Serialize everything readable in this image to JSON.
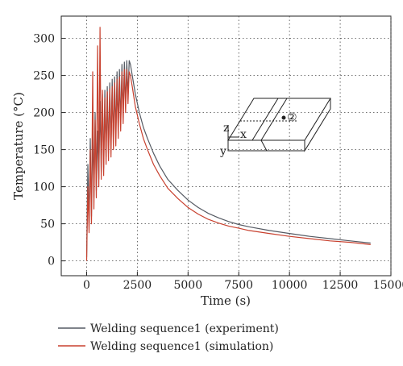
{
  "chart_data": {
    "type": "line",
    "xlabel": "Time (s)",
    "ylabel": "Temperature (°C)",
    "xlim": [
      -1250,
      15000
    ],
    "ylim": [
      -20,
      330
    ],
    "xticks": [
      0,
      2500,
      5000,
      7500,
      10000,
      12500,
      15000
    ],
    "xtick_labels": [
      "0",
      "2500",
      "5000",
      "7500",
      "10000",
      "12500",
      "15000"
    ],
    "yticks": [
      0,
      50,
      100,
      150,
      200,
      250,
      300
    ],
    "ytick_labels": [
      "0",
      "50",
      "100",
      "150",
      "200",
      "250",
      "300"
    ],
    "grid": true,
    "legend_position": "bottom",
    "series": [
      {
        "name": "Welding sequence1 (experiment)",
        "color": "#555a63",
        "x": [
          0,
          60,
          120,
          180,
          240,
          300,
          360,
          420,
          480,
          540,
          600,
          660,
          720,
          780,
          840,
          900,
          960,
          1020,
          1080,
          1140,
          1200,
          1260,
          1320,
          1380,
          1440,
          1500,
          1560,
          1620,
          1680,
          1740,
          1800,
          1860,
          1920,
          1980,
          2040,
          2100,
          2160,
          2250,
          2400,
          2600,
          2800,
          3000,
          3300,
          3600,
          4000,
          4500,
          5000,
          5500,
          6000,
          6500,
          7000,
          7500,
          8000,
          9000,
          10000,
          11000,
          12000,
          13000,
          14000
        ],
        "y": [
          5,
          130,
          50,
          165,
          60,
          175,
          85,
          200,
          95,
          175,
          110,
          215,
          120,
          225,
          125,
          230,
          140,
          235,
          145,
          240,
          150,
          245,
          160,
          248,
          170,
          255,
          180,
          258,
          185,
          265,
          195,
          268,
          210,
          270,
          220,
          270,
          265,
          250,
          225,
          200,
          180,
          165,
          145,
          128,
          110,
          95,
          82,
          72,
          64,
          58,
          53,
          49,
          46,
          41,
          37,
          33,
          30,
          27,
          24
        ]
      },
      {
        "name": "Welding sequence1 (simulation)",
        "color": "#c8412f",
        "x": [
          0,
          60,
          120,
          180,
          240,
          300,
          360,
          420,
          480,
          540,
          600,
          660,
          720,
          780,
          840,
          900,
          960,
          1020,
          1080,
          1140,
          1200,
          1260,
          1320,
          1380,
          1440,
          1500,
          1560,
          1620,
          1680,
          1740,
          1800,
          1860,
          1920,
          1980,
          2040,
          2100,
          2160,
          2250,
          2400,
          2600,
          2800,
          3000,
          3300,
          3600,
          4000,
          4500,
          5000,
          5500,
          6000,
          6500,
          7000,
          7500,
          8000,
          9000,
          10000,
          11000,
          12000,
          13000,
          14000
        ],
        "y": [
          0,
          100,
          38,
          150,
          50,
          255,
          70,
          190,
          85,
          290,
          100,
          315,
          110,
          230,
          115,
          220,
          130,
          228,
          135,
          232,
          140,
          235,
          150,
          240,
          155,
          245,
          165,
          248,
          175,
          255,
          185,
          258,
          200,
          258,
          212,
          255,
          250,
          235,
          208,
          185,
          165,
          150,
          130,
          115,
          98,
          84,
          72,
          63,
          56,
          51,
          47,
          44,
          41,
          37,
          33,
          30,
          27,
          25,
          22
        ]
      }
    ],
    "inset": {
      "labels": [
        "z",
        "x",
        "y",
        "②"
      ]
    }
  }
}
